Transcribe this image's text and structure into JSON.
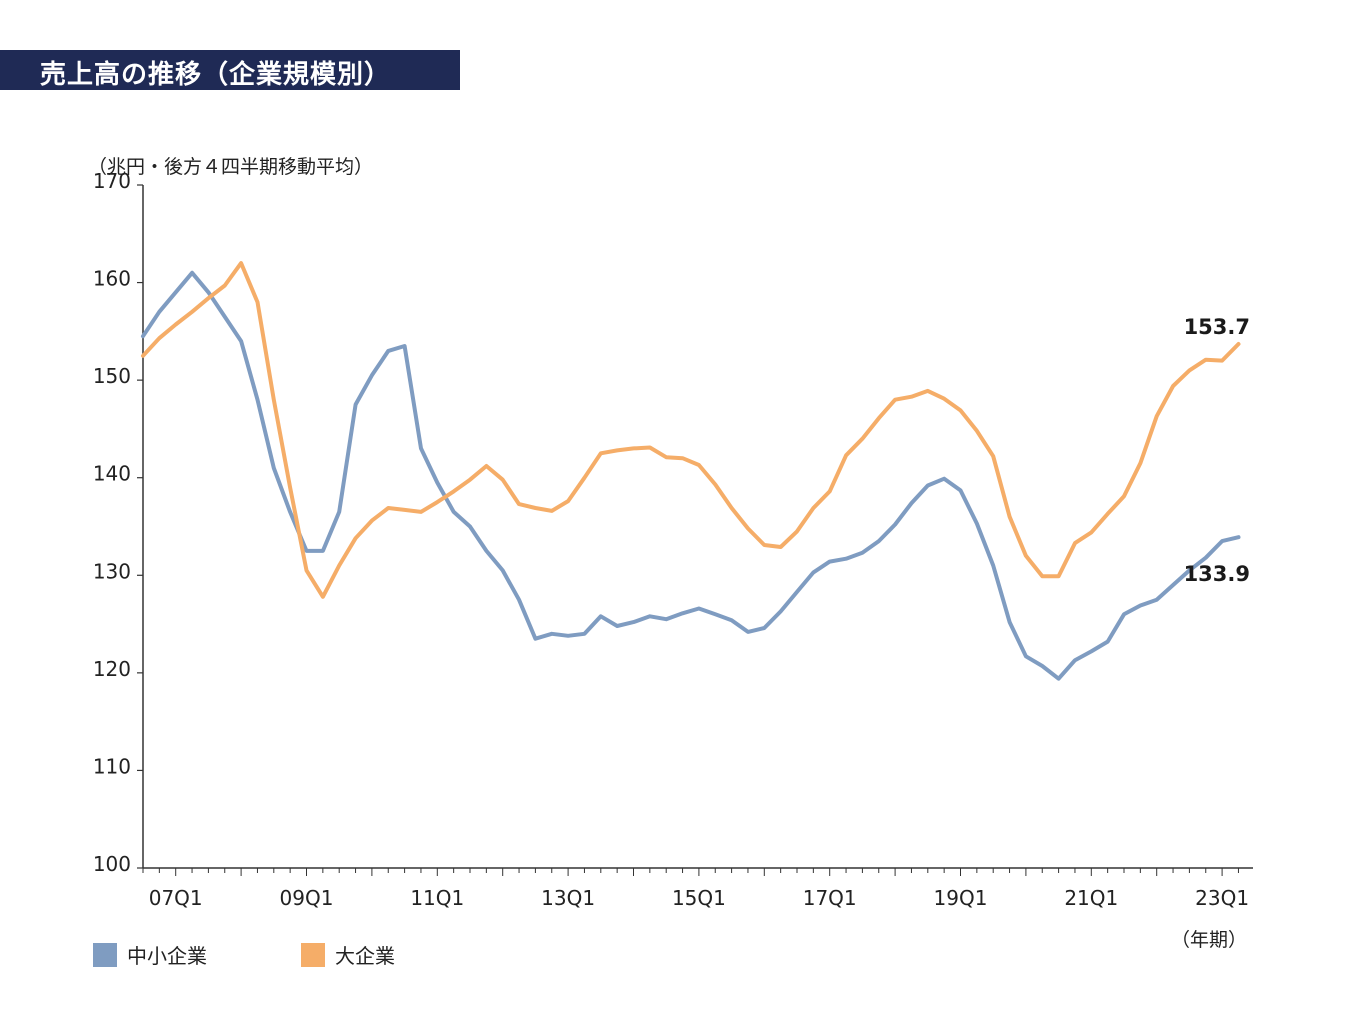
{
  "header": {
    "title": "売上高の推移（企業規模別）"
  },
  "colors": {
    "title_bg": "#1f2a55",
    "small_medium": "#7f9cc1",
    "large": "#f5ad68",
    "axis": "#333333"
  },
  "chart_data": {
    "type": "line",
    "title": "売上高の推移（企業規模別）",
    "ylabel": "（兆円・後方４四半期移動平均）",
    "xlabel": "（年期）",
    "ylim": [
      100,
      170
    ],
    "y_ticks": [
      100,
      110,
      120,
      130,
      140,
      150,
      160,
      170
    ],
    "x_tick_labels": [
      "07Q1",
      "09Q1",
      "11Q1",
      "13Q1",
      "15Q1",
      "17Q1",
      "19Q1",
      "21Q1",
      "23Q1"
    ],
    "x_start": "06Q3",
    "legend_position": "bottom-left",
    "grid": false,
    "series": [
      {
        "name": "中小企業",
        "color": "#7f9cc1",
        "end_label": "133.9",
        "values": [
          154.5,
          157.0,
          159.0,
          161.0,
          159.0,
          156.5,
          154.0,
          148.0,
          141.0,
          136.5,
          132.5,
          132.5,
          136.5,
          147.5,
          150.5,
          153.0,
          153.5,
          143.0,
          139.5,
          136.5,
          135.0,
          132.5,
          130.5,
          127.5,
          123.5,
          124.0,
          123.8,
          124.0,
          125.8,
          124.8,
          125.2,
          125.8,
          125.5,
          126.1,
          126.6,
          126.0,
          125.4,
          124.2,
          124.6,
          126.3,
          128.3,
          130.3,
          131.4,
          131.7,
          132.3,
          133.5,
          135.2,
          137.4,
          139.2,
          139.9,
          138.7,
          135.3,
          131.0,
          125.2,
          121.7,
          120.7,
          119.4,
          121.3,
          122.2,
          123.2,
          126.0,
          126.9,
          127.5,
          129.0,
          130.5,
          131.8,
          133.5,
          133.9
        ]
      },
      {
        "name": "大企業",
        "color": "#f5ad68",
        "end_label": "153.7",
        "values": [
          152.5,
          154.3,
          155.7,
          157.0,
          158.4,
          159.7,
          162.0,
          158.0,
          148.0,
          139.0,
          130.5,
          127.8,
          131.0,
          133.8,
          135.6,
          136.9,
          136.7,
          136.5,
          137.5,
          138.6,
          139.8,
          141.2,
          139.8,
          137.3,
          136.9,
          136.6,
          137.6,
          140.0,
          142.5,
          142.8,
          143.0,
          143.1,
          142.1,
          142.0,
          141.3,
          139.3,
          136.9,
          134.8,
          133.1,
          132.9,
          134.5,
          136.9,
          138.6,
          142.3,
          144.0,
          146.1,
          148.0,
          148.3,
          148.9,
          148.1,
          146.9,
          144.8,
          142.2,
          136.0,
          132.0,
          129.9,
          129.9,
          133.3,
          134.4,
          136.3,
          138.1,
          141.5,
          146.3,
          149.4,
          151.0,
          152.1,
          152.0,
          153.7
        ]
      }
    ]
  }
}
